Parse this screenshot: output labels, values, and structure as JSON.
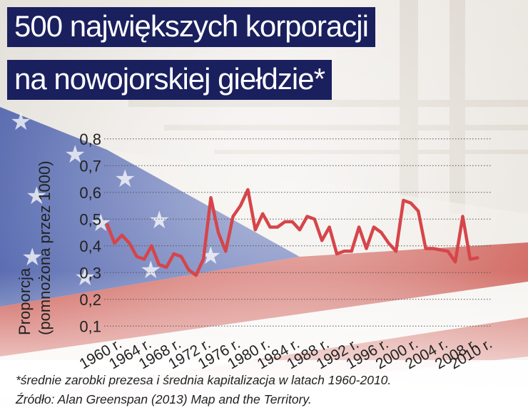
{
  "title": {
    "line1": "500 największych korporacji",
    "line2": "na nowojorskiej giełdzie*"
  },
  "footnote": {
    "line1": "*średnie zarobki prezesa i średnia kapitalizacja w latach 1960-2010.",
    "line2": "Źródło: Alan Greenspan (2013) Map and the Territory."
  },
  "colors": {
    "title_background": "#1a1f5e",
    "line": "#d6454a",
    "flag_blue": "#3f56a8",
    "flag_red": "#c9483f"
  },
  "chart_data": {
    "type": "line",
    "ylabel": [
      "Proporcja",
      "(pomnożona przez 1000)"
    ],
    "xlabel": "",
    "ylim": [
      0.05,
      0.85
    ],
    "xlim": [
      1959.6,
      2012
    ],
    "yticks": [
      {
        "value": 0.1,
        "label": "0,1"
      },
      {
        "value": 0.2,
        "label": "0,2"
      },
      {
        "value": 0.3,
        "label": "0,3"
      },
      {
        "value": 0.4,
        "label": "0,4"
      },
      {
        "value": 0.5,
        "label": "0,5"
      },
      {
        "value": 0.6,
        "label": "0,6"
      },
      {
        "value": 0.7,
        "label": "0,7"
      },
      {
        "value": 0.8,
        "label": "0,8"
      }
    ],
    "xticks": [
      {
        "value": 1960,
        "label": "1960 r."
      },
      {
        "value": 1964,
        "label": "1964 r."
      },
      {
        "value": 1968,
        "label": "1968 r."
      },
      {
        "value": 1972,
        "label": "1972 r."
      },
      {
        "value": 1976,
        "label": "1976 r."
      },
      {
        "value": 1980,
        "label": "1980 r."
      },
      {
        "value": 1984,
        "label": "1984 r."
      },
      {
        "value": 1988,
        "label": "1988 r."
      },
      {
        "value": 1992,
        "label": "1992 r."
      },
      {
        "value": 1996,
        "label": "1996 r."
      },
      {
        "value": 2000,
        "label": "2000 r."
      },
      {
        "value": 2004,
        "label": "2004 r."
      },
      {
        "value": 2008,
        "label": "2008 r."
      },
      {
        "value": 2010,
        "label": "2010 r."
      }
    ],
    "grid": true,
    "series": [
      {
        "x": [
          1960,
          1961,
          1962,
          1963,
          1964,
          1965,
          1966,
          1967,
          1968,
          1969,
          1970,
          1971,
          1972,
          1973,
          1974,
          1975,
          1976,
          1977,
          1978,
          1979,
          1980,
          1981,
          1982,
          1983,
          1984,
          1985,
          1986,
          1987,
          1988,
          1989,
          1990,
          1991,
          1992,
          1993,
          1994,
          1995,
          1996,
          1997,
          1998,
          1999,
          2000,
          2001,
          2002,
          2003,
          2004,
          2005,
          2006,
          2007,
          2008,
          2009,
          2010
        ],
        "values": [
          0.48,
          0.41,
          0.44,
          0.41,
          0.36,
          0.35,
          0.4,
          0.33,
          0.32,
          0.37,
          0.36,
          0.31,
          0.29,
          0.35,
          0.58,
          0.45,
          0.38,
          0.51,
          0.55,
          0.61,
          0.46,
          0.52,
          0.47,
          0.47,
          0.49,
          0.49,
          0.46,
          0.51,
          0.5,
          0.42,
          0.47,
          0.37,
          0.38,
          0.38,
          0.47,
          0.39,
          0.47,
          0.45,
          0.41,
          0.38,
          0.57,
          0.56,
          0.53,
          0.39,
          0.39,
          0.385,
          0.38,
          0.34,
          0.51,
          0.35,
          0.355
        ]
      }
    ]
  }
}
